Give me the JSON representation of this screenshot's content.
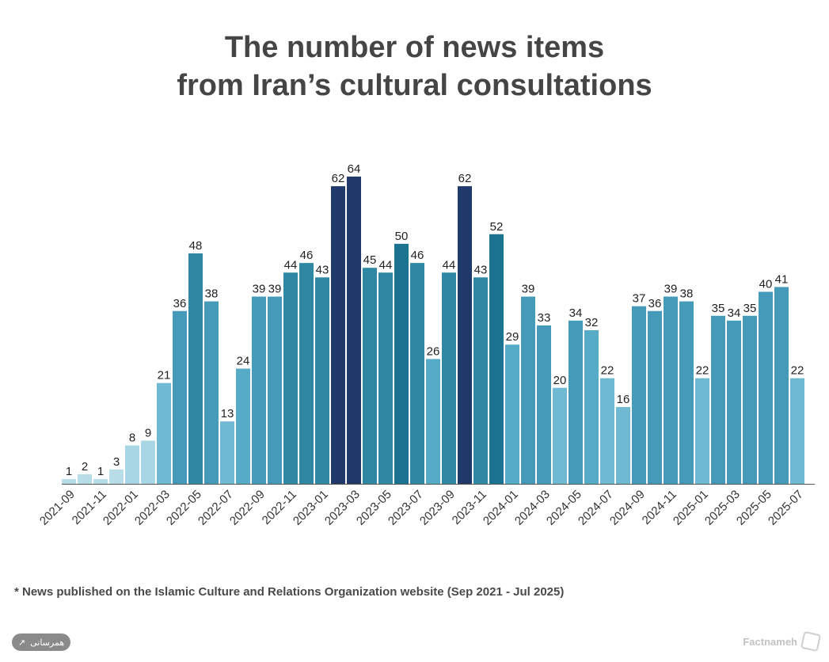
{
  "title": {
    "line1": "The number of news items",
    "line2": "from Iran’s cultural consultations"
  },
  "footnote": "* News published on the Islamic Culture and Relations Organization website (Sep 2021 - Jul 2025)",
  "share": {
    "label": "همرسانی",
    "icon": "share-icon"
  },
  "brand": {
    "name": "Factnameh",
    "icon": "factnameh-logo-icon"
  },
  "chart_data": {
    "type": "bar",
    "title": "The number of news items from Iran’s cultural consultations",
    "xlabel": "",
    "ylabel": "",
    "ylim": [
      0,
      64
    ],
    "grid": false,
    "categories": [
      "2021-09",
      "2021-10",
      "2021-11",
      "2021-12",
      "2022-01",
      "2022-02",
      "2022-03",
      "2022-04",
      "2022-05",
      "2022-06",
      "2022-07",
      "2022-08",
      "2022-09",
      "2022-10",
      "2022-11",
      "2022-12",
      "2023-01",
      "2023-02",
      "2023-03",
      "2023-04",
      "2023-05",
      "2023-06",
      "2023-07",
      "2023-08",
      "2023-09",
      "2023-10",
      "2023-11",
      "2023-12",
      "2024-01",
      "2024-02",
      "2024-03",
      "2024-04",
      "2024-05",
      "2024-06",
      "2024-07",
      "2024-08",
      "2024-09",
      "2024-10",
      "2024-11",
      "2024-12",
      "2025-01",
      "2025-02",
      "2025-03",
      "2025-04",
      "2025-05",
      "2025-06",
      "2025-07"
    ],
    "tick_labels": [
      "2021-09",
      "2021-11",
      "2022-01",
      "2022-03",
      "2022-05",
      "2022-07",
      "2022-09",
      "2022-11",
      "2023-01",
      "2023-03",
      "2023-05",
      "2023-07",
      "2023-09",
      "2023-11",
      "2024-01",
      "2024-03",
      "2024-05",
      "2024-07",
      "2024-09",
      "2024-11",
      "2025-01",
      "2025-03",
      "2025-05",
      "2025-07"
    ],
    "values": [
      1,
      2,
      1,
      3,
      8,
      9,
      21,
      36,
      48,
      38,
      13,
      24,
      39,
      39,
      44,
      46,
      43,
      62,
      64,
      45,
      44,
      50,
      46,
      26,
      44,
      62,
      43,
      52,
      29,
      39,
      33,
      20,
      34,
      32,
      22,
      16,
      37,
      36,
      39,
      38,
      22,
      35,
      34,
      35,
      40,
      41,
      22
    ],
    "colors": {
      "axis": "#555555",
      "label": "#222222",
      "scale": [
        "#b8dde8",
        "#a9d6e5",
        "#6fbad2",
        "#56abc6",
        "#4599b9",
        "#2f87a3",
        "#1a7390",
        "#1f3a6a"
      ]
    }
  }
}
